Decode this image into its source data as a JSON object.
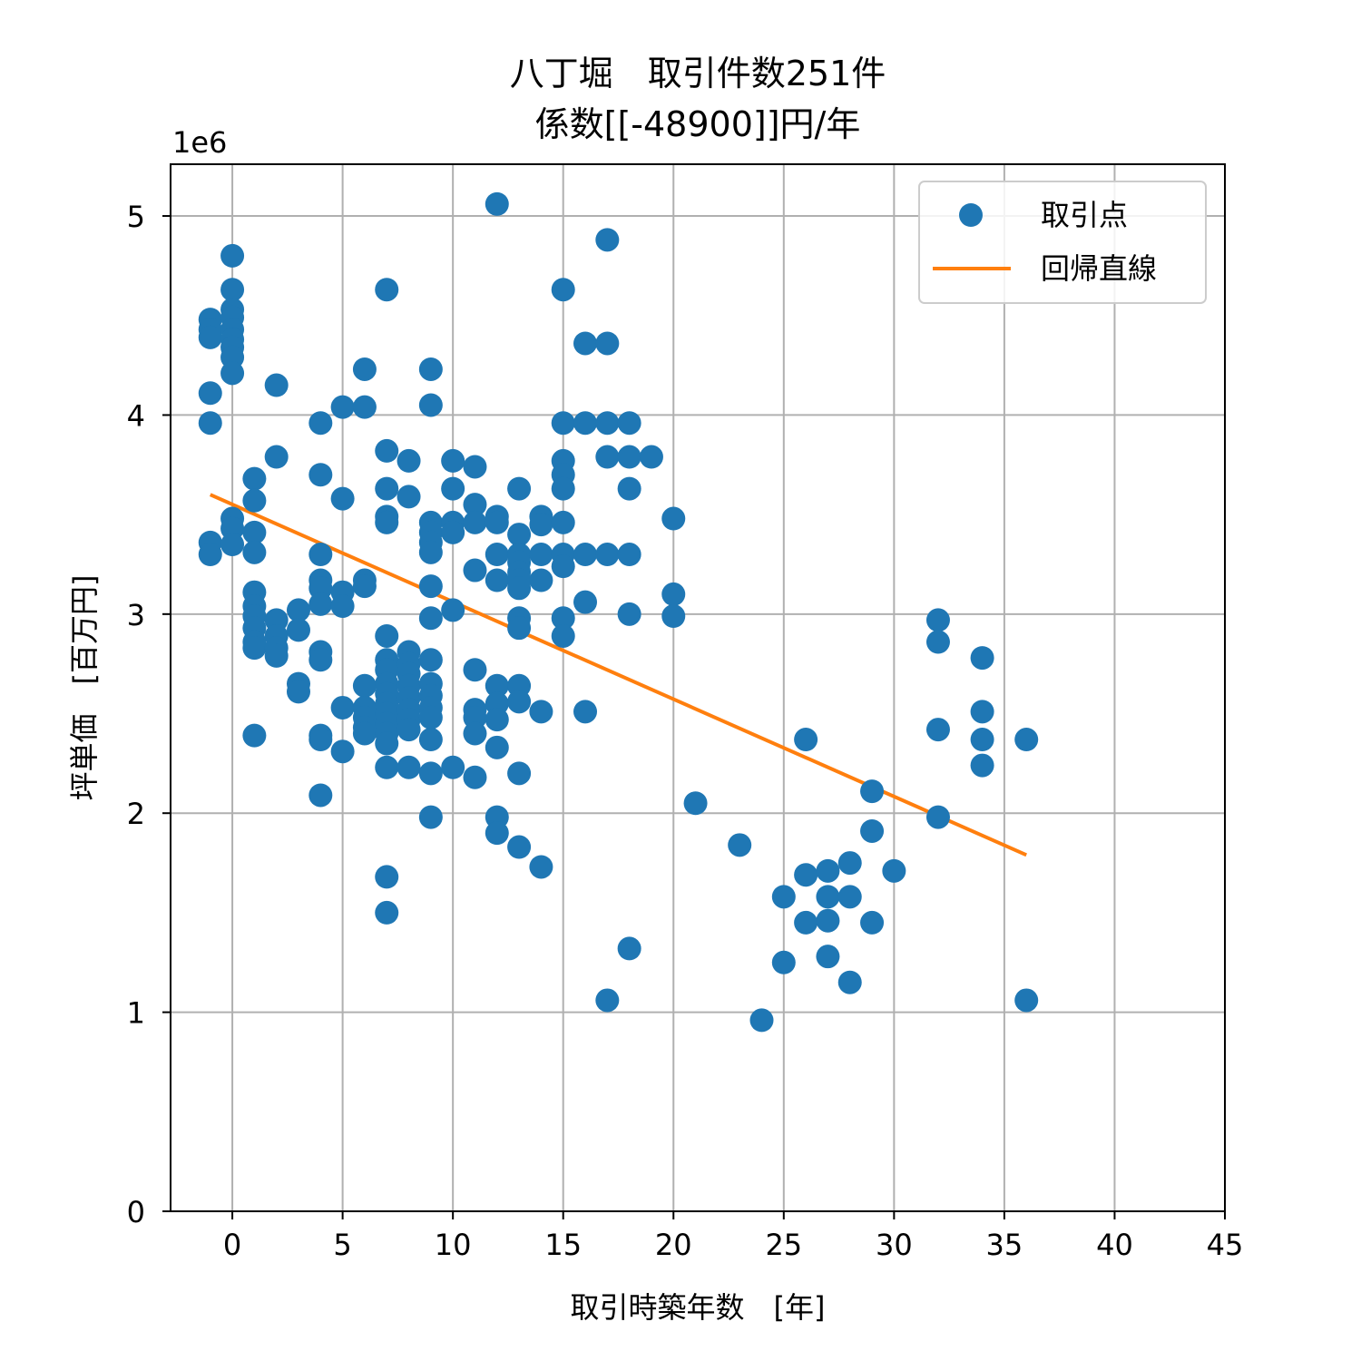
{
  "chart_data": {
    "type": "scatter",
    "title_lines": [
      "八丁堀　取引件数251件",
      "係数[[-48900]]円/年"
    ],
    "xlabel": "取引時築年数　[年]",
    "ylabel": "坪単価　[百万円]",
    "y_offset_label": "1e6",
    "xlim": [
      -2.8,
      45
    ],
    "ylim": [
      0,
      5260000
    ],
    "x_ticks": [
      0,
      5,
      10,
      15,
      20,
      25,
      30,
      35,
      40,
      45
    ],
    "y_ticks": [
      0,
      1000000,
      2000000,
      3000000,
      4000000,
      5000000
    ],
    "y_tick_labels": [
      "0",
      "1",
      "2",
      "3",
      "4",
      "5"
    ],
    "grid": true,
    "legend_position": "upper right",
    "colors": {
      "points": "#1f77b4",
      "line": "#ff7f0e",
      "grid": "#b0b0b0"
    },
    "series": [
      {
        "name": "取引点",
        "kind": "scatter",
        "points": [
          [
            -1,
            4.48
          ],
          [
            -1,
            4.43
          ],
          [
            -1,
            4.39
          ],
          [
            -1,
            4.11
          ],
          [
            -1,
            3.96
          ],
          [
            -1,
            3.36
          ],
          [
            -1,
            3.3
          ],
          [
            0,
            4.8
          ],
          [
            0,
            4.63
          ],
          [
            0,
            4.53
          ],
          [
            0,
            4.49
          ],
          [
            0,
            4.43
          ],
          [
            0,
            4.38
          ],
          [
            0,
            4.34
          ],
          [
            0,
            4.29
          ],
          [
            0,
            4.21
          ],
          [
            0,
            3.48
          ],
          [
            0,
            3.43
          ],
          [
            0,
            3.35
          ],
          [
            1,
            3.68
          ],
          [
            1,
            3.57
          ],
          [
            1,
            3.41
          ],
          [
            1,
            3.31
          ],
          [
            1,
            3.11
          ],
          [
            1,
            3.04
          ],
          [
            1,
            2.99
          ],
          [
            1,
            2.93
          ],
          [
            1,
            2.86
          ],
          [
            1,
            2.83
          ],
          [
            1,
            2.39
          ],
          [
            2,
            4.15
          ],
          [
            2,
            3.79
          ],
          [
            2,
            2.97
          ],
          [
            2,
            2.89
          ],
          [
            2,
            2.83
          ],
          [
            2,
            2.79
          ],
          [
            3,
            3.02
          ],
          [
            3,
            2.92
          ],
          [
            3,
            2.65
          ],
          [
            3,
            2.61
          ],
          [
            4,
            3.96
          ],
          [
            4,
            3.7
          ],
          [
            4,
            3.3
          ],
          [
            4,
            3.17
          ],
          [
            4,
            3.13
          ],
          [
            4,
            3.05
          ],
          [
            4,
            2.81
          ],
          [
            4,
            2.77
          ],
          [
            4,
            2.39
          ],
          [
            4,
            2.37
          ],
          [
            4,
            2.09
          ],
          [
            5,
            4.04
          ],
          [
            5,
            3.58
          ],
          [
            5,
            3.11
          ],
          [
            5,
            3.04
          ],
          [
            5,
            2.53
          ],
          [
            5,
            2.31
          ],
          [
            6,
            4.23
          ],
          [
            6,
            4.04
          ],
          [
            6,
            3.17
          ],
          [
            6,
            3.14
          ],
          [
            6,
            2.64
          ],
          [
            6,
            2.53
          ],
          [
            6,
            2.48
          ],
          [
            6,
            2.43
          ],
          [
            6,
            2.4
          ],
          [
            7,
            4.63
          ],
          [
            7,
            3.82
          ],
          [
            7,
            3.63
          ],
          [
            7,
            3.49
          ],
          [
            7,
            3.46
          ],
          [
            7,
            2.89
          ],
          [
            7,
            2.77
          ],
          [
            7,
            2.72
          ],
          [
            7,
            2.65
          ],
          [
            7,
            2.6
          ],
          [
            7,
            2.55
          ],
          [
            7,
            2.5
          ],
          [
            7,
            2.45
          ],
          [
            7,
            2.4
          ],
          [
            7,
            2.35
          ],
          [
            7,
            2.23
          ],
          [
            7,
            1.68
          ],
          [
            7,
            1.5
          ],
          [
            8,
            3.77
          ],
          [
            8,
            3.59
          ],
          [
            8,
            2.81
          ],
          [
            8,
            2.75
          ],
          [
            8,
            2.7
          ],
          [
            8,
            2.64
          ],
          [
            8,
            2.58
          ],
          [
            8,
            2.52
          ],
          [
            8,
            2.47
          ],
          [
            8,
            2.42
          ],
          [
            8,
            2.23
          ],
          [
            9,
            4.23
          ],
          [
            9,
            4.05
          ],
          [
            9,
            3.46
          ],
          [
            9,
            3.41
          ],
          [
            9,
            3.36
          ],
          [
            9,
            3.31
          ],
          [
            9,
            3.14
          ],
          [
            9,
            2.98
          ],
          [
            9,
            2.77
          ],
          [
            9,
            2.65
          ],
          [
            9,
            2.59
          ],
          [
            9,
            2.53
          ],
          [
            9,
            2.48
          ],
          [
            9,
            2.37
          ],
          [
            9,
            2.2
          ],
          [
            9,
            1.98
          ],
          [
            10,
            3.77
          ],
          [
            10,
            3.63
          ],
          [
            10,
            3.46
          ],
          [
            10,
            3.41
          ],
          [
            10,
            3.02
          ],
          [
            10,
            2.23
          ],
          [
            11,
            3.74
          ],
          [
            11,
            3.55
          ],
          [
            11,
            3.46
          ],
          [
            11,
            3.22
          ],
          [
            11,
            2.72
          ],
          [
            11,
            2.52
          ],
          [
            11,
            2.48
          ],
          [
            11,
            2.4
          ],
          [
            11,
            2.18
          ],
          [
            12,
            5.06
          ],
          [
            12,
            3.49
          ],
          [
            12,
            3.46
          ],
          [
            12,
            3.3
          ],
          [
            12,
            3.17
          ],
          [
            12,
            2.64
          ],
          [
            12,
            2.55
          ],
          [
            12,
            2.47
          ],
          [
            12,
            2.33
          ],
          [
            12,
            1.98
          ],
          [
            12,
            1.9
          ],
          [
            13,
            3.63
          ],
          [
            13,
            3.4
          ],
          [
            13,
            3.3
          ],
          [
            13,
            3.26
          ],
          [
            13,
            3.21
          ],
          [
            13,
            3.17
          ],
          [
            13,
            3.13
          ],
          [
            13,
            2.98
          ],
          [
            13,
            2.93
          ],
          [
            13,
            2.64
          ],
          [
            13,
            2.56
          ],
          [
            13,
            2.2
          ],
          [
            13,
            1.83
          ],
          [
            14,
            3.49
          ],
          [
            14,
            3.45
          ],
          [
            14,
            3.3
          ],
          [
            14,
            3.17
          ],
          [
            14,
            2.51
          ],
          [
            14,
            1.73
          ],
          [
            15,
            4.63
          ],
          [
            15,
            3.96
          ],
          [
            15,
            3.77
          ],
          [
            15,
            3.7
          ],
          [
            15,
            3.63
          ],
          [
            15,
            3.46
          ],
          [
            15,
            3.3
          ],
          [
            15,
            3.24
          ],
          [
            15,
            2.98
          ],
          [
            15,
            2.89
          ],
          [
            16,
            4.36
          ],
          [
            16,
            3.96
          ],
          [
            16,
            3.3
          ],
          [
            16,
            3.06
          ],
          [
            16,
            2.51
          ],
          [
            17,
            4.88
          ],
          [
            17,
            4.36
          ],
          [
            17,
            3.96
          ],
          [
            17,
            3.79
          ],
          [
            17,
            3.3
          ],
          [
            17,
            1.06
          ],
          [
            18,
            3.96
          ],
          [
            18,
            3.79
          ],
          [
            18,
            3.63
          ],
          [
            18,
            3.3
          ],
          [
            18,
            3.0
          ],
          [
            18,
            1.32
          ],
          [
            19,
            3.79
          ],
          [
            20,
            3.48
          ],
          [
            20,
            3.1
          ],
          [
            20,
            2.99
          ],
          [
            21,
            2.05
          ],
          [
            23,
            1.84
          ],
          [
            24,
            0.96
          ],
          [
            25,
            1.58
          ],
          [
            25,
            1.25
          ],
          [
            26,
            2.37
          ],
          [
            26,
            1.69
          ],
          [
            26,
            1.45
          ],
          [
            27,
            1.71
          ],
          [
            27,
            1.58
          ],
          [
            27,
            1.46
          ],
          [
            27,
            1.28
          ],
          [
            28,
            1.75
          ],
          [
            28,
            1.58
          ],
          [
            28,
            1.15
          ],
          [
            29,
            2.11
          ],
          [
            29,
            1.91
          ],
          [
            29,
            1.45
          ],
          [
            30,
            1.71
          ],
          [
            32,
            2.97
          ],
          [
            32,
            2.86
          ],
          [
            32,
            2.42
          ],
          [
            32,
            1.98
          ],
          [
            34,
            2.78
          ],
          [
            34,
            2.51
          ],
          [
            34,
            2.37
          ],
          [
            34,
            2.24
          ],
          [
            36,
            2.37
          ],
          [
            36,
            1.06
          ]
        ]
      },
      {
        "name": "回帰直線",
        "kind": "line",
        "points": [
          [
            -1,
            3.6
          ],
          [
            36,
            1.79
          ]
        ]
      }
    ]
  }
}
